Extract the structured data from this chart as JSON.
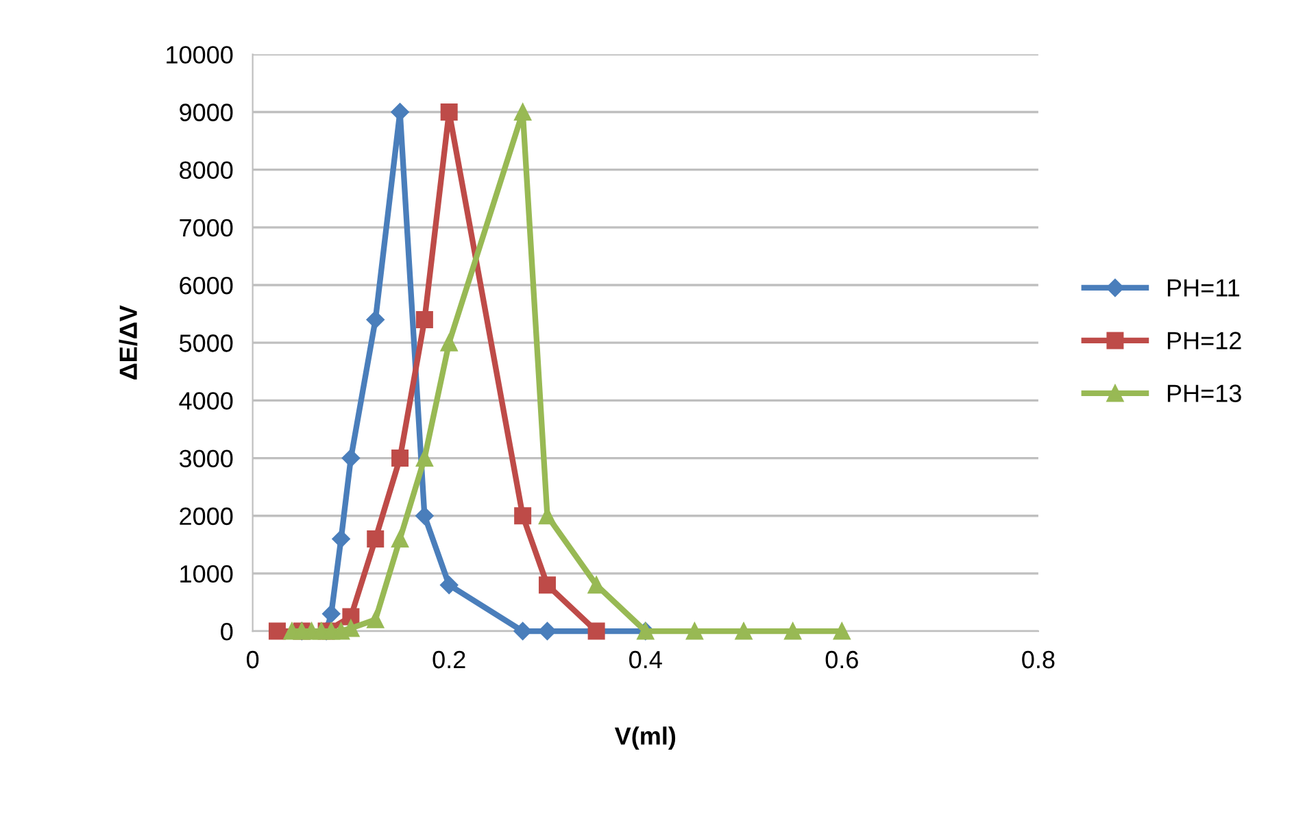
{
  "chart_data": {
    "type": "line",
    "xlabel": "V(ml)",
    "ylabel": "ΔE/ΔV",
    "xlim": [
      0,
      0.8
    ],
    "xticks": [
      {
        "value": 0,
        "label": "0"
      },
      0.2,
      0.4,
      0.6,
      0.8
    ],
    "ylim": [
      0,
      10000
    ],
    "yticks": [
      0,
      1000,
      2000,
      3000,
      4000,
      5000,
      6000,
      7000,
      8000,
      9000,
      10000
    ],
    "grid": "y",
    "legend": "right",
    "series": [
      {
        "name": "PH=11",
        "color": "#4a7ebb",
        "marker": "diamond",
        "x": [
          0.05,
          0.075,
          0.08,
          0.09,
          0.1,
          0.125,
          0.15,
          0.175,
          0.2,
          0.275,
          0.3,
          0.4
        ],
        "values": [
          0,
          0,
          300,
          1600,
          3000,
          5400,
          9000,
          2000,
          800,
          0,
          0,
          0
        ]
      },
      {
        "name": "PH=12",
        "color": "#be4b48",
        "marker": "square",
        "x": [
          0.025,
          0.05,
          0.075,
          0.1,
          0.125,
          0.15,
          0.175,
          0.2,
          0.275,
          0.3,
          0.35
        ],
        "values": [
          0,
          0,
          0,
          250,
          1600,
          3000,
          5400,
          9000,
          2000,
          800,
          0
        ]
      },
      {
        "name": "PH=13",
        "color": "#98b954",
        "marker": "triangle",
        "x": [
          0.04,
          0.05,
          0.06,
          0.07,
          0.08,
          0.09,
          0.1,
          0.125,
          0.15,
          0.175,
          0.2,
          0.275,
          0.3,
          0.35,
          0.4,
          0.45,
          0.5,
          0.55,
          0.6
        ],
        "values": [
          0,
          0,
          0,
          0,
          0,
          0,
          50,
          200,
          1600,
          3000,
          5000,
          9000,
          2000,
          800,
          0,
          0,
          0,
          0,
          0
        ]
      }
    ]
  }
}
